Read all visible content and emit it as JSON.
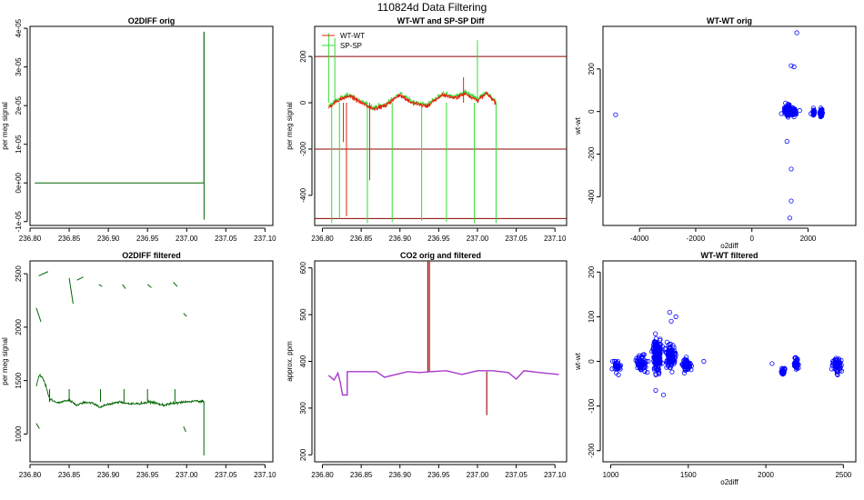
{
  "page_title": "110824d   Data Filtering",
  "colors": {
    "wt_wt": "#e8210c",
    "sp_sp": "#33dd33",
    "o2diff": "#006400",
    "hline": "#8b0000",
    "co2_orig": "#a31515",
    "co2_filtered": "#a63acb",
    "scatter_point": "#0000ff"
  },
  "chart_data": [
    {
      "id": "p1",
      "type": "line",
      "title": "O2DIFF orig",
      "xlabel": "",
      "ylabel": "per meg signal",
      "xlim": [
        236.8,
        237.11
      ],
      "ylim": [
        -1.1e-05,
        4.05e-05
      ],
      "xticks": [
        236.8,
        236.85,
        236.9,
        236.95,
        237.0,
        237.05,
        237.1
      ],
      "xtick_labels": [
        "236.80",
        "236.85",
        "236.90",
        "236.95",
        "237.00",
        "237.05",
        "237.10"
      ],
      "yticks": [
        -1e-05,
        0,
        1e-05,
        2e-05,
        3e-05,
        4e-05
      ],
      "ytick_labels": [
        "-1e-05",
        "0e+00",
        "1e-05",
        "2e-05",
        "3e-05",
        "4e-05"
      ],
      "series": [
        {
          "name": "O2DIFF",
          "color": "#006400",
          "x": [
            236.806,
            236.86,
            236.92,
            236.98,
            237.0,
            237.022,
            237.022,
            237.0222,
            237.0222
          ],
          "y": [
            0.0,
            0.0,
            0.0,
            0.0,
            0.0,
            0.0,
            3.9e-05,
            3.9e-05,
            -9.5e-06
          ]
        }
      ]
    },
    {
      "id": "p2",
      "type": "line",
      "title": "WT-WT and SP-SP Diff",
      "xlabel": "",
      "ylabel": "per meg signal",
      "xlim": [
        236.79,
        237.115
      ],
      "ylim": [
        -530,
        330
      ],
      "xticks": [
        236.8,
        236.85,
        236.9,
        236.95,
        237.0,
        237.05,
        237.1
      ],
      "xtick_labels": [
        "236.80",
        "236.85",
        "236.90",
        "236.95",
        "237.00",
        "237.05",
        "237.10"
      ],
      "yticks": [
        -400,
        -200,
        0,
        200
      ],
      "ytick_labels": [
        "-400",
        "-200",
        "0",
        "200"
      ],
      "hlines": [
        200,
        -200,
        -500
      ],
      "legend": {
        "position": "top-left",
        "entries": [
          "WT-WT",
          "SP-SP"
        ]
      },
      "sp_sp_spikes": [
        {
          "x": 236.808,
          "y": 300
        },
        {
          "x": 236.812,
          "y": -520
        },
        {
          "x": 236.816,
          "y": 280
        },
        {
          "x": 236.822,
          "y": -500
        },
        {
          "x": 236.858,
          "y": -520
        },
        {
          "x": 236.89,
          "y": -515
        },
        {
          "x": 236.928,
          "y": -510
        },
        {
          "x": 236.96,
          "y": -515
        },
        {
          "x": 236.996,
          "y": -520
        },
        {
          "x": 237.0,
          "y": 270
        },
        {
          "x": 237.024,
          "y": -520
        }
      ],
      "wt_wt_spikes": [
        {
          "x": 236.827,
          "y": -170
        },
        {
          "x": 236.831,
          "y": -490
        },
        {
          "x": 236.861,
          "y": -335
        },
        {
          "x": 236.982,
          "y": 110
        }
      ],
      "series": [
        {
          "name": "WT-WT",
          "color": "#e8210c",
          "x": [
            236.808,
            236.82,
            236.835,
            236.85,
            236.865,
            236.88,
            236.9,
            236.915,
            236.935,
            236.955,
            236.97,
            236.985,
            237.0,
            237.012,
            237.024
          ],
          "y": [
            -20,
            10,
            30,
            0,
            -25,
            -15,
            35,
            0,
            -15,
            35,
            20,
            40,
            10,
            40,
            0
          ]
        },
        {
          "name": "SP-SP",
          "color": "#33dd33",
          "x": [
            236.808,
            236.82,
            236.835,
            236.85,
            236.865,
            236.88,
            236.9,
            236.915,
            236.935,
            236.955,
            236.97,
            236.985,
            237.0,
            237.012,
            237.024
          ],
          "y": [
            -15,
            15,
            35,
            5,
            -20,
            -10,
            40,
            5,
            -10,
            40,
            25,
            45,
            15,
            45,
            5
          ]
        }
      ]
    },
    {
      "id": "p3",
      "type": "scatter",
      "title": "WT-WT orig",
      "xlabel": "o2diff",
      "ylabel": "wt-wt",
      "xlim": [
        -5300,
        3700
      ],
      "ylim": [
        -535,
        400
      ],
      "xticks": [
        -4000,
        -2000,
        0,
        2000
      ],
      "xtick_labels": [
        "-4000",
        "-2000",
        "0",
        "2000"
      ],
      "yticks": [
        -400,
        -200,
        0,
        200
      ],
      "ytick_labels": [
        "-400",
        "-200",
        "0",
        "200"
      ],
      "series": [
        {
          "name": "WT-WT vs O2DIFF",
          "color": "#0000ff",
          "x": [
            -4850,
            1600,
            1400,
            1500,
            1250,
            1400,
            1400,
            1350,
            2100,
            2200,
            2450,
            1050,
            1200,
            1300,
            1500,
            1700
          ],
          "y": [
            -15,
            370,
            215,
            210,
            -140,
            -270,
            -420,
            -500,
            -10,
            -15,
            -25,
            -10,
            40,
            20,
            -25,
            5
          ],
          "clusters": [
            {
              "x": 1300,
              "y": 5,
              "sx": 110,
              "sy": 22,
              "n": 200
            },
            {
              "x": 1480,
              "y": 0,
              "sx": 90,
              "sy": 18,
              "n": 90
            },
            {
              "x": 2200,
              "y": -5,
              "sx": 35,
              "sy": 15,
              "n": 40
            },
            {
              "x": 2470,
              "y": -5,
              "sx": 45,
              "sy": 18,
              "n": 55
            }
          ]
        }
      ]
    },
    {
      "id": "p4",
      "type": "line",
      "title": "O2DIFF filtered",
      "xlabel": "",
      "ylabel": "per meg signal",
      "xlim": [
        236.8,
        237.11
      ],
      "ylim": [
        740,
        2620
      ],
      "xticks": [
        236.8,
        236.85,
        236.9,
        236.95,
        237.0,
        237.05,
        237.1
      ],
      "xtick_labels": [
        "236.80",
        "236.85",
        "236.90",
        "236.95",
        "237.00",
        "237.05",
        "237.10"
      ],
      "yticks": [
        1000,
        1500,
        2000,
        2500
      ],
      "ytick_labels": [
        "1000",
        "1500",
        "2000",
        "2500"
      ],
      "series": [
        {
          "name": "O2DIFF filtered",
          "color": "#006400",
          "x": [
            236.808,
            236.812,
            236.818,
            236.825,
            236.835,
            236.85,
            236.86,
            236.87,
            236.88,
            236.89,
            236.9,
            236.915,
            236.93,
            236.945,
            236.955,
            236.97,
            236.985,
            237.0,
            237.01,
            237.022
          ],
          "y": [
            1450,
            1560,
            1500,
            1330,
            1290,
            1320,
            1270,
            1300,
            1290,
            1250,
            1280,
            1300,
            1280,
            1290,
            1300,
            1270,
            1290,
            1300,
            1310,
            1300
          ],
          "segments": [
            {
              "x": [
                236.808,
                236.814
              ],
              "y": [
                2180,
                2050
              ]
            },
            {
              "x": [
                236.811,
                236.823
              ],
              "y": [
                2480,
                2520
              ]
            },
            {
              "x": [
                236.85,
                236.855
              ],
              "y": [
                2460,
                2220
              ]
            },
            {
              "x": [
                236.86,
                236.868
              ],
              "y": [
                2440,
                2470
              ]
            },
            {
              "x": [
                236.888,
                236.892
              ],
              "y": [
                2400,
                2380
              ]
            },
            {
              "x": [
                236.918,
                236.922
              ],
              "y": [
                2400,
                2360
              ]
            },
            {
              "x": [
                236.95,
                236.955
              ],
              "y": [
                2400,
                2370
              ]
            },
            {
              "x": [
                236.983,
                236.988
              ],
              "y": [
                2420,
                2380
              ]
            },
            {
              "x": [
                236.996,
                237.0
              ],
              "y": [
                2130,
                2100
              ]
            },
            {
              "x": [
                236.808,
                236.812
              ],
              "y": [
                1100,
                1050
              ]
            },
            {
              "x": [
                236.996,
                236.999
              ],
              "y": [
                1070,
                1020
              ]
            },
            {
              "x": [
                237.022,
                237.022
              ],
              "y": [
                1300,
                800
              ]
            }
          ]
        }
      ]
    },
    {
      "id": "p5",
      "type": "line",
      "title": "CO2 orig and filtered",
      "xlabel": "",
      "ylabel": "approx. ppm",
      "xlim": [
        236.79,
        237.115
      ],
      "ylim": [
        185,
        615
      ],
      "xticks": [
        236.8,
        236.85,
        236.9,
        236.95,
        237.0,
        237.05,
        237.1
      ],
      "xtick_labels": [
        "236.80",
        "236.85",
        "236.90",
        "236.95",
        "237.00",
        "237.05",
        "237.10"
      ],
      "yticks": [
        200,
        300,
        400,
        500,
        600
      ],
      "ytick_labels": [
        "200",
        "300",
        "400",
        "500",
        "600"
      ],
      "series": [
        {
          "name": "CO2 orig",
          "color": "#a31515",
          "spikes": [
            {
              "x": 236.936,
              "y": 620
            },
            {
              "x": 236.938,
              "y": 615
            },
            {
              "x": 237.012,
              "y": 285
            }
          ]
        },
        {
          "name": "CO2 filtered",
          "color": "#a63acb",
          "x": [
            236.808,
            236.815,
            236.82,
            236.823,
            236.826,
            236.832,
            236.832,
            236.84,
            236.87,
            236.88,
            236.91,
            236.925,
            236.94,
            236.96,
            236.98,
            237.0,
            237.02,
            237.04,
            237.05,
            237.06,
            237.08,
            237.105
          ],
          "y": [
            370,
            360,
            375,
            355,
            328,
            328,
            378,
            378,
            378,
            366,
            378,
            376,
            378,
            380,
            372,
            380,
            380,
            376,
            362,
            380,
            376,
            372
          ]
        }
      ]
    },
    {
      "id": "p6",
      "type": "scatter",
      "title": "WT-WT filtered",
      "xlabel": "o2diff",
      "ylabel": "wt-wt",
      "xlim": [
        950,
        2580
      ],
      "ylim": [
        -225,
        225
      ],
      "xticks": [
        1000,
        1500,
        2000,
        2500
      ],
      "xtick_labels": [
        "1000",
        "1500",
        "2000",
        "2500"
      ],
      "yticks": [
        -200,
        -100,
        0,
        100,
        200
      ],
      "ytick_labels": [
        "-200",
        "-100",
        "0",
        "100",
        "200"
      ],
      "series": [
        {
          "name": "WT-WT vs O2DIFF filtered",
          "color": "#0000ff",
          "x": [
            1050,
            1380,
            1340,
            1600,
            2040,
            2110,
            1290,
            1390,
            1420
          ],
          "y": [
            -30,
            110,
            -75,
            0,
            -5,
            -25,
            -65,
            90,
            100
          ],
          "clusters": [
            {
              "x": 1040,
              "y": -10,
              "sx": 25,
              "sy": 12,
              "n": 35
            },
            {
              "x": 1200,
              "y": -5,
              "sx": 35,
              "sy": 20,
              "n": 60
            },
            {
              "x": 1300,
              "y": 15,
              "sx": 30,
              "sy": 35,
              "n": 220
            },
            {
              "x": 1390,
              "y": 10,
              "sx": 30,
              "sy": 28,
              "n": 110
            },
            {
              "x": 1490,
              "y": -10,
              "sx": 30,
              "sy": 15,
              "n": 60
            },
            {
              "x": 2110,
              "y": -20,
              "sx": 12,
              "sy": 10,
              "n": 20
            },
            {
              "x": 2195,
              "y": -5,
              "sx": 15,
              "sy": 15,
              "n": 35
            },
            {
              "x": 2460,
              "y": -10,
              "sx": 35,
              "sy": 18,
              "n": 60
            }
          ]
        }
      ]
    }
  ]
}
